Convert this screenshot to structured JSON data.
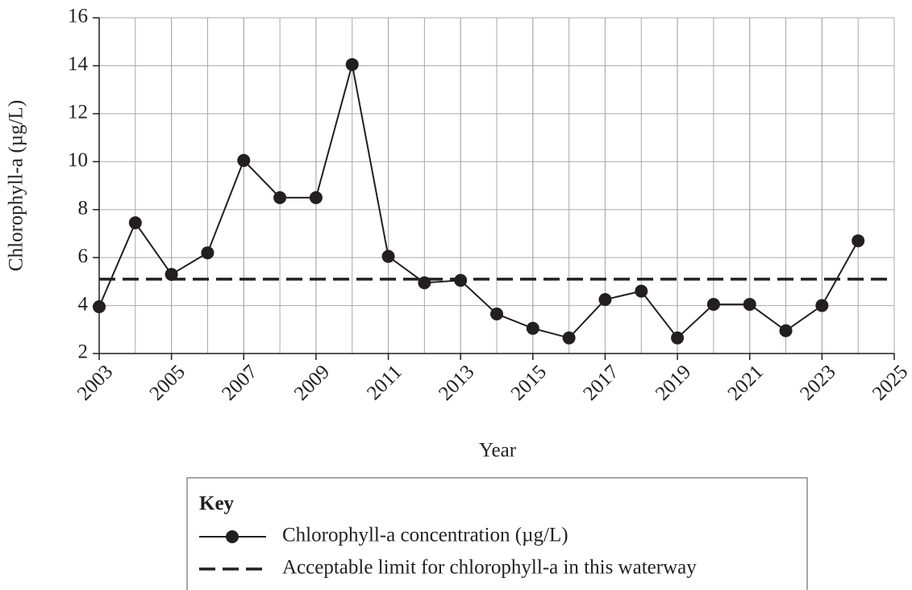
{
  "chart_data": {
    "type": "line",
    "x_label": "Year",
    "y_label": "Chlorophyll-a (µg/L)",
    "x": [
      2003,
      2004,
      2005,
      2006,
      2007,
      2008,
      2009,
      2010,
      2011,
      2012,
      2013,
      2014,
      2015,
      2016,
      2017,
      2018,
      2019,
      2020,
      2021,
      2022,
      2023,
      2024
    ],
    "series": [
      {
        "name": "Chlorophyll-a concentration (µg/L)",
        "color": "#231f20",
        "values": [
          3.95,
          7.45,
          5.3,
          6.2,
          10.05,
          8.5,
          8.5,
          14.05,
          6.05,
          4.95,
          5.05,
          3.65,
          3.05,
          2.65,
          4.25,
          4.6,
          2.65,
          4.05,
          4.05,
          2.95,
          4.0,
          6.7
        ]
      }
    ],
    "reference_lines": [
      {
        "name": "Acceptable limit for chlorophyll-a in this waterway",
        "value": 5.1,
        "color": "#231f20",
        "style": "dashed"
      }
    ],
    "xlim": [
      2003,
      2025
    ],
    "xticks": [
      2003,
      2005,
      2007,
      2009,
      2011,
      2013,
      2015,
      2017,
      2019,
      2021,
      2023,
      2025
    ],
    "ylim": [
      2,
      16
    ],
    "yticks": [
      2,
      4,
      6,
      8,
      10,
      12,
      14,
      16
    ],
    "grid": true,
    "legend": {
      "title": "Key",
      "position": "bottom"
    }
  }
}
